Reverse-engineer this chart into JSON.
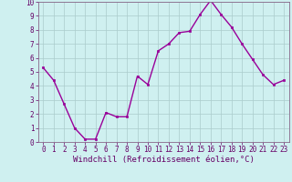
{
  "x": [
    0,
    1,
    2,
    3,
    4,
    5,
    6,
    7,
    8,
    9,
    10,
    11,
    12,
    13,
    14,
    15,
    16,
    17,
    18,
    19,
    20,
    21,
    22,
    23
  ],
  "y": [
    5.3,
    4.4,
    2.7,
    1.0,
    0.2,
    0.2,
    2.1,
    1.8,
    1.8,
    4.7,
    4.1,
    6.5,
    7.0,
    7.8,
    7.9,
    9.1,
    10.1,
    9.1,
    8.2,
    7.0,
    5.9,
    4.8,
    4.1,
    4.4
  ],
  "line_color": "#990099",
  "marker": "s",
  "marker_size": 2,
  "linewidth": 1.0,
  "bg_color": "#cff0f0",
  "grid_color": "#aacccc",
  "xlabel": "Windchill (Refroidissement éolien,°C)",
  "xlim": [
    -0.5,
    23.5
  ],
  "ylim": [
    0,
    10
  ],
  "xticks": [
    0,
    1,
    2,
    3,
    4,
    5,
    6,
    7,
    8,
    9,
    10,
    11,
    12,
    13,
    14,
    15,
    16,
    17,
    18,
    19,
    20,
    21,
    22,
    23
  ],
  "yticks": [
    0,
    1,
    2,
    3,
    4,
    5,
    6,
    7,
    8,
    9,
    10
  ],
  "tick_fontsize": 5.5,
  "xlabel_fontsize": 6.5,
  "axis_color": "#660066",
  "spine_color": "#886688"
}
